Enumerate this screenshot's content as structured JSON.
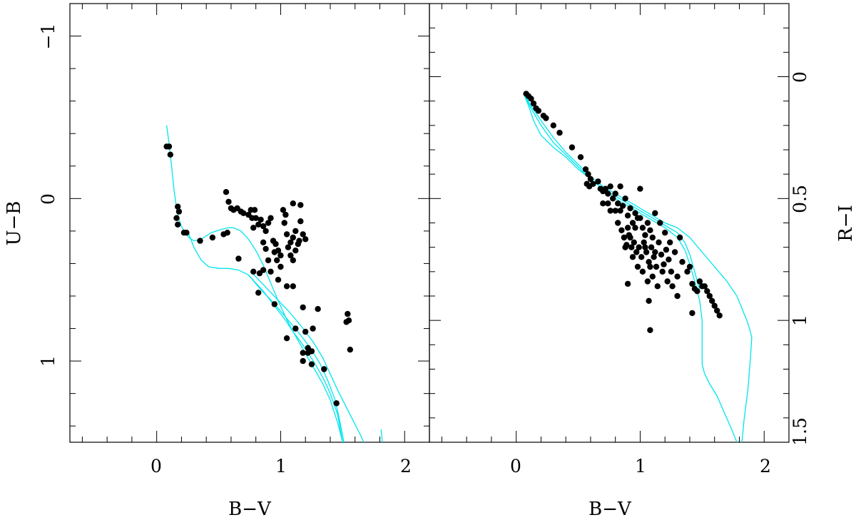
{
  "chart_data": [
    {
      "type": "scatter",
      "panel": "left",
      "xlabel": "B−V",
      "ylabel": "U−B",
      "xlim": [
        -0.7,
        2.2
      ],
      "ylim": [
        1.5,
        -1.2
      ],
      "y_inverted": true,
      "xticklabels": [
        "0",
        "1",
        "2"
      ],
      "yticklabels": [
        "−1",
        "0",
        "1"
      ],
      "curve_color": "#00e5ee",
      "point_color": "#000000",
      "curves": [
        {
          "x": [
            0.08,
            0.1,
            0.12,
            0.14,
            0.16,
            0.18,
            0.2,
            0.22,
            0.26,
            0.3,
            0.36,
            0.44,
            0.52,
            0.58,
            0.62,
            0.68,
            0.74,
            0.8,
            0.86,
            0.92,
            0.98,
            1.04,
            1.1,
            1.16,
            1.22,
            1.28,
            1.34,
            1.4,
            1.46,
            1.5
          ],
          "y": [
            -0.45,
            -0.34,
            -0.2,
            -0.05,
            0.06,
            0.13,
            0.17,
            0.2,
            0.24,
            0.26,
            0.25,
            0.21,
            0.19,
            0.18,
            0.18,
            0.2,
            0.25,
            0.32,
            0.41,
            0.52,
            0.63,
            0.73,
            0.82,
            0.9,
            0.98,
            1.06,
            1.14,
            1.24,
            1.38,
            1.5
          ]
        },
        {
          "x": [
            0.26,
            0.3,
            0.36,
            0.42,
            0.5,
            0.58,
            0.66,
            0.74,
            0.8,
            0.86,
            0.92,
            0.98,
            1.04,
            1.1,
            1.16,
            1.22,
            1.28,
            1.34,
            1.4,
            1.46,
            1.5
          ],
          "y": [
            0.22,
            0.3,
            0.38,
            0.42,
            0.43,
            0.43,
            0.44,
            0.47,
            0.52,
            0.57,
            0.63,
            0.69,
            0.75,
            0.82,
            0.88,
            0.95,
            1.02,
            1.1,
            1.2,
            1.33,
            1.5
          ]
        },
        {
          "x": [
            0.76,
            0.86,
            0.96,
            1.06,
            1.16,
            1.26,
            1.34,
            1.4,
            1.46,
            1.52,
            1.58,
            1.64,
            1.67
          ],
          "y": [
            0.45,
            0.53,
            0.61,
            0.69,
            0.78,
            0.88,
            0.98,
            1.08,
            1.18,
            1.27,
            1.36,
            1.45,
            1.5
          ]
        },
        {
          "x": [
            0.74,
            0.84,
            0.94,
            1.04,
            1.14,
            1.24,
            1.32,
            1.38,
            1.44,
            1.48,
            1.51
          ],
          "y": [
            0.47,
            0.56,
            0.64,
            0.73,
            0.82,
            0.92,
            1.02,
            1.12,
            1.24,
            1.38,
            1.5
          ]
        },
        {
          "x": [
            1.81,
            1.82
          ],
          "y": [
            1.42,
            1.5
          ]
        }
      ],
      "points": [
        [
          0.08,
          -0.32
        ],
        [
          0.1,
          -0.32
        ],
        [
          0.11,
          -0.27
        ],
        [
          0.17,
          0.05
        ],
        [
          0.16,
          0.12
        ],
        [
          0.18,
          0.08
        ],
        [
          0.17,
          0.16
        ],
        [
          0.22,
          0.21
        ],
        [
          0.24,
          0.21
        ],
        [
          0.35,
          0.26
        ],
        [
          0.45,
          0.24
        ],
        [
          0.54,
          0.22
        ],
        [
          0.57,
          0.21
        ],
        [
          0.56,
          -0.04
        ],
        [
          0.58,
          0.02
        ],
        [
          0.6,
          0.06
        ],
        [
          0.62,
          0.07
        ],
        [
          0.65,
          0.06
        ],
        [
          0.66,
          0.37
        ],
        [
          0.68,
          0.08
        ],
        [
          0.7,
          0.09
        ],
        [
          0.74,
          0.1
        ],
        [
          0.76,
          0.07
        ],
        [
          0.77,
          0.12
        ],
        [
          0.78,
          0.18
        ],
        [
          0.79,
          0.07
        ],
        [
          0.8,
          0.12
        ],
        [
          0.82,
          0.16
        ],
        [
          0.84,
          0.13
        ],
        [
          0.86,
          0.17
        ],
        [
          0.88,
          0.2
        ],
        [
          0.86,
          0.27
        ],
        [
          0.9,
          0.15
        ],
        [
          0.88,
          0.31
        ],
        [
          0.92,
          0.12
        ],
        [
          0.9,
          0.38
        ],
        [
          0.92,
          0.45
        ],
        [
          0.94,
          0.26
        ],
        [
          0.96,
          0.28
        ],
        [
          0.98,
          0.32
        ],
        [
          0.95,
          0.33
        ],
        [
          0.97,
          0.38
        ],
        [
          1.0,
          0.35
        ],
        [
          1.02,
          0.07
        ],
        [
          1.04,
          0.1
        ],
        [
          1.03,
          0.15
        ],
        [
          1.05,
          0.22
        ],
        [
          1.06,
          0.3
        ],
        [
          1.08,
          0.27
        ],
        [
          1.1,
          0.24
        ],
        [
          1.12,
          0.32
        ],
        [
          1.14,
          0.28
        ],
        [
          1.0,
          0.42
        ],
        [
          0.98,
          0.5
        ],
        [
          1.05,
          0.54
        ],
        [
          1.08,
          0.35
        ],
        [
          1.1,
          0.38
        ],
        [
          1.12,
          0.2
        ],
        [
          1.15,
          0.26
        ],
        [
          1.16,
          0.14
        ],
        [
          1.18,
          0.22
        ],
        [
          1.2,
          0.25
        ],
        [
          1.1,
          0.03
        ],
        [
          1.16,
          0.04
        ],
        [
          1.18,
          0.67
        ],
        [
          0.78,
          0.45
        ],
        [
          0.83,
          0.46
        ],
        [
          0.86,
          0.44
        ],
        [
          0.82,
          0.58
        ],
        [
          0.95,
          0.65
        ],
        [
          1.05,
          0.86
        ],
        [
          1.1,
          0.54
        ],
        [
          1.12,
          0.8
        ],
        [
          1.18,
          0.95
        ],
        [
          1.2,
          0.82
        ],
        [
          1.22,
          0.95
        ],
        [
          1.25,
          0.94
        ],
        [
          1.26,
          0.8
        ],
        [
          1.22,
          0.92
        ],
        [
          1.3,
          0.68
        ],
        [
          1.18,
          1.0
        ],
        [
          1.25,
          1.02
        ],
        [
          1.35,
          1.05
        ],
        [
          1.45,
          1.26
        ],
        [
          1.54,
          0.71
        ],
        [
          1.55,
          0.75
        ],
        [
          1.56,
          0.93
        ],
        [
          1.53,
          0.76
        ]
      ]
    },
    {
      "type": "scatter",
      "panel": "right",
      "xlabel": "B−V",
      "ylabel": "R−I",
      "xlim": [
        -0.7,
        2.2
      ],
      "ylim": [
        1.5,
        -0.3
      ],
      "y_inverted": true,
      "xticklabels": [
        "0",
        "1",
        "2"
      ],
      "yticklabels": [
        "0",
        "0.5",
        "1",
        "1.5"
      ],
      "curve_color": "#00e5ee",
      "point_color": "#000000",
      "curves": [
        {
          "x": [
            0.06,
            0.12,
            0.2,
            0.3,
            0.4,
            0.5,
            0.6,
            0.7,
            0.8,
            0.9,
            1.0,
            1.1,
            1.2,
            1.3,
            1.4,
            1.5,
            1.6,
            1.7,
            1.78,
            1.82,
            1.86,
            1.88,
            1.9,
            1.89,
            1.87,
            1.84,
            1.82
          ],
          "y": [
            0.07,
            0.12,
            0.18,
            0.25,
            0.31,
            0.36,
            0.41,
            0.45,
            0.48,
            0.51,
            0.54,
            0.57,
            0.6,
            0.62,
            0.66,
            0.72,
            0.78,
            0.84,
            0.9,
            0.95,
            1.0,
            1.03,
            1.07,
            1.15,
            1.28,
            1.4,
            1.5
          ]
        },
        {
          "x": [
            0.06,
            0.1,
            0.14,
            0.2,
            0.3,
            0.4,
            0.5,
            0.6,
            0.7,
            0.8,
            0.9,
            1.0,
            1.1,
            1.2,
            1.3,
            1.36,
            1.4,
            1.44,
            1.48,
            1.5,
            1.5,
            1.52,
            1.56,
            1.62,
            1.68,
            1.74,
            1.78
          ],
          "y": [
            0.07,
            0.12,
            0.18,
            0.24,
            0.29,
            0.33,
            0.38,
            0.42,
            0.46,
            0.5,
            0.53,
            0.56,
            0.59,
            0.62,
            0.66,
            0.71,
            0.77,
            0.84,
            0.92,
            1.0,
            1.18,
            1.22,
            1.26,
            1.31,
            1.38,
            1.45,
            1.5
          ]
        },
        {
          "x": [
            0.06,
            0.12,
            0.2,
            0.3,
            0.4,
            0.5,
            0.6,
            0.7,
            0.8,
            0.9,
            1.0,
            1.1,
            1.2,
            1.3,
            1.36,
            1.4,
            1.44,
            1.48
          ],
          "y": [
            0.07,
            0.13,
            0.2,
            0.27,
            0.32,
            0.37,
            0.42,
            0.46,
            0.49,
            0.52,
            0.55,
            0.58,
            0.61,
            0.64,
            0.68,
            0.73,
            0.8,
            0.88
          ]
        }
      ],
      "points": [
        [
          0.08,
          0.07
        ],
        [
          0.1,
          0.08
        ],
        [
          0.12,
          0.09
        ],
        [
          0.14,
          0.11
        ],
        [
          0.16,
          0.13
        ],
        [
          0.18,
          0.14
        ],
        [
          0.22,
          0.16
        ],
        [
          0.24,
          0.17
        ],
        [
          0.3,
          0.2
        ],
        [
          0.35,
          0.23
        ],
        [
          0.45,
          0.29
        ],
        [
          0.52,
          0.33
        ],
        [
          0.56,
          0.38
        ],
        [
          0.58,
          0.4
        ],
        [
          0.6,
          0.42
        ],
        [
          0.57,
          0.44
        ],
        [
          0.59,
          0.45
        ],
        [
          0.62,
          0.44
        ],
        [
          0.66,
          0.43
        ],
        [
          0.68,
          0.46
        ],
        [
          0.7,
          0.47
        ],
        [
          0.72,
          0.46
        ],
        [
          0.74,
          0.48
        ],
        [
          0.76,
          0.45
        ],
        [
          0.78,
          0.5
        ],
        [
          0.8,
          0.48
        ],
        [
          0.82,
          0.52
        ],
        [
          0.84,
          0.55
        ],
        [
          0.86,
          0.53
        ],
        [
          0.88,
          0.5
        ],
        [
          0.9,
          0.57
        ],
        [
          0.92,
          0.54
        ],
        [
          0.94,
          0.6
        ],
        [
          0.96,
          0.56
        ],
        [
          0.98,
          0.58
        ],
        [
          1.0,
          0.46
        ],
        [
          1.02,
          0.62
        ],
        [
          1.04,
          0.65
        ],
        [
          1.06,
          0.6
        ],
        [
          1.08,
          0.63
        ],
        [
          1.1,
          0.66
        ],
        [
          0.8,
          0.55
        ],
        [
          0.82,
          0.6
        ],
        [
          0.85,
          0.63
        ],
        [
          0.87,
          0.66
        ],
        [
          0.89,
          0.69
        ],
        [
          0.91,
          0.65
        ],
        [
          0.93,
          0.7
        ],
        [
          0.95,
          0.68
        ],
        [
          0.97,
          0.72
        ],
        [
          0.99,
          0.7
        ],
        [
          1.01,
          0.74
        ],
        [
          1.03,
          0.68
        ],
        [
          1.05,
          0.72
        ],
        [
          1.07,
          0.76
        ],
        [
          1.09,
          0.7
        ],
        [
          1.11,
          0.74
        ],
        [
          1.13,
          0.78
        ],
        [
          1.15,
          0.68
        ],
        [
          1.17,
          0.73
        ],
        [
          1.19,
          0.77
        ],
        [
          1.21,
          0.71
        ],
        [
          1.23,
          0.75
        ],
        [
          1.25,
          0.8
        ],
        [
          0.9,
          0.62
        ],
        [
          0.94,
          0.74
        ],
        [
          0.98,
          0.78
        ],
        [
          1.02,
          0.8
        ],
        [
          1.06,
          0.84
        ],
        [
          1.1,
          0.82
        ],
        [
          1.14,
          0.86
        ],
        [
          1.18,
          0.8
        ],
        [
          1.22,
          0.84
        ],
        [
          1.26,
          0.86
        ],
        [
          1.3,
          0.82
        ],
        [
          1.34,
          0.76
        ],
        [
          1.38,
          0.8
        ],
        [
          1.4,
          0.78
        ],
        [
          1.42,
          0.85
        ],
        [
          1.44,
          0.87
        ],
        [
          1.46,
          0.88
        ],
        [
          1.48,
          0.84
        ],
        [
          1.5,
          0.86
        ],
        [
          1.52,
          0.86
        ],
        [
          1.54,
          0.88
        ],
        [
          1.56,
          0.9
        ],
        [
          1.58,
          0.92
        ],
        [
          1.6,
          0.94
        ],
        [
          1.62,
          0.96
        ],
        [
          1.64,
          0.98
        ],
        [
          1.42,
          0.97
        ],
        [
          1.3,
          0.9
        ],
        [
          1.08,
          1.04
        ],
        [
          1.07,
          0.92
        ],
        [
          0.9,
          0.85
        ],
        [
          1.2,
          0.64
        ],
        [
          1.16,
          0.6
        ],
        [
          1.12,
          0.56
        ],
        [
          1.0,
          0.58
        ],
        [
          0.96,
          0.62
        ],
        [
          0.92,
          0.66
        ],
        [
          0.88,
          0.7
        ],
        [
          1.04,
          0.7
        ],
        [
          1.08,
          0.78
        ],
        [
          1.12,
          0.72
        ],
        [
          1.24,
          0.68
        ],
        [
          1.28,
          0.72
        ],
        [
          1.32,
          0.66
        ],
        [
          0.74,
          0.52
        ],
        [
          0.7,
          0.52
        ],
        [
          0.76,
          0.55
        ],
        [
          0.84,
          0.45
        ]
      ]
    }
  ]
}
